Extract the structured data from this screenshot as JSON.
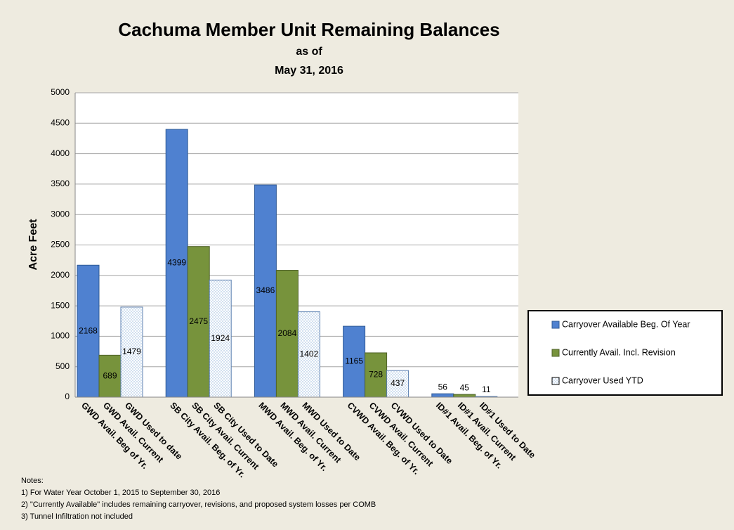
{
  "chart_data": {
    "type": "bar",
    "title": "Cachuma Member Unit Remaining Balances",
    "subtitle": [
      "as of",
      "May 31, 2016"
    ],
    "y_label": "Acre Feet",
    "ylim": [
      0,
      5000
    ],
    "yticks": [
      0,
      500,
      1000,
      1500,
      2000,
      2500,
      3000,
      3500,
      4000,
      4500,
      5000
    ],
    "grid": true,
    "legend": "right",
    "series": [
      {
        "name": "Carryover Available Beg. Of Year",
        "color": "#4f81d0",
        "values": [
          2168,
          4399,
          3486,
          1165,
          56
        ],
        "labels": [
          "GWD Avail. Beg of Yr.",
          "SB City Avail. Beg. of Yr.",
          "MWD Avail. Beg. of Yr.",
          "CVWD Avail. Beg. of Yr.",
          "ID#1 Avail. Beg. of Yr."
        ]
      },
      {
        "name": "Currently Avail. Incl. Revision",
        "color": "#77933c",
        "values": [
          689,
          2475,
          2084,
          728,
          45
        ],
        "labels": [
          "GWD Avail. Current",
          "SB City Avail. Current",
          "MWD Avail. Current",
          "CVWD Avail. Current",
          "ID#1 Avail. Current"
        ]
      },
      {
        "name": "Carryover Used YTD",
        "color": "#ffffff",
        "pattern": "dotted",
        "values": [
          1479,
          1924,
          1402,
          437,
          11
        ],
        "labels": [
          "GWD Used to date",
          "SB City Used to Date",
          "MWD Used to Date",
          "CVWD Used to Date",
          "ID#1 Used to Date"
        ]
      }
    ],
    "notes": [
      "Notes:",
      "1) For Water Year October 1, 2015 to September 30, 2016",
      "2) \"Currently Available\" includes remaining carryover, revisions, and proposed system losses per COMB",
      "3) Tunnel Infiltration not included"
    ]
  }
}
